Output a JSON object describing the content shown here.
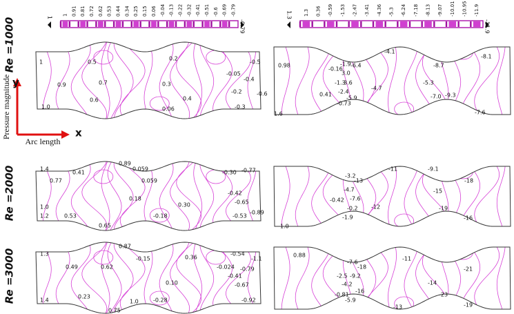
{
  "colorbars": [
    {
      "ticks": [
        "1",
        "0.91",
        "0.81",
        "0.72",
        "0.62",
        "0.53",
        "0.44",
        "0.34",
        "0.25",
        "0.15",
        "0.06",
        "-0.04",
        "-0.13",
        "-0.22",
        "-0.32",
        "-0.41",
        "-0.51",
        "-0.6",
        "-0.69",
        "-0.79"
      ],
      "start": "1",
      "end": "-0.79"
    },
    {
      "ticks": [
        "1.3",
        "0.36",
        "-0.59",
        "-1.53",
        "-2.47",
        "-3.41",
        "-4.36",
        "-5.3",
        "-6.24",
        "-7.18",
        "-8.13",
        "-9.07",
        "-10.01",
        "-10.95",
        "-11.9"
      ],
      "start": "1.3",
      "end": "-11.9"
    }
  ],
  "rows": [
    "Re =1000",
    "Re =2000",
    "Re =3000"
  ],
  "axes": {
    "y": "y",
    "x": "x",
    "y_label": "Pressure magnitude",
    "x_label": "Arc length"
  },
  "panels": [
    {
      "labels": [
        "1",
        "0.5",
        "0.2",
        "0.9",
        "0.7",
        "0.3",
        "-0.05",
        "-0.4",
        "-0.5",
        "0.6",
        "-0.2",
        "-0.6",
        "0.4",
        "0.06",
        "-0.3",
        "1.0"
      ]
    },
    {
      "labels": [
        "0.98",
        "-4.1",
        "-8.1",
        "-0.16",
        "-1.9",
        "-6.4",
        "3.0",
        "-8.7",
        "-1.3",
        "3.6",
        "-4.7",
        "-5.3",
        "0.41",
        "-2.4",
        "-5.9",
        "-7.0",
        "-9.3",
        "-0.73",
        "1.6",
        "-7.6"
      ]
    },
    {
      "labels": [
        "1.4",
        "0.41",
        "0.89",
        "0.059",
        "0.77",
        "0.059",
        "-0.30",
        "-0.77",
        "0.18",
        "0.30",
        "-0.42",
        "-0.65",
        "1.0",
        "1.2",
        "0.53",
        "-0.18",
        "-0.53",
        "-0.89",
        "0.65"
      ]
    },
    {
      "labels": [
        "-3.2",
        "-13",
        "-11",
        "-9.1",
        "-4.7",
        "-18",
        "-15",
        "-0.42",
        "-7.6",
        "-12",
        "-19",
        "-0.2",
        "-1.9",
        "-16",
        "1.0"
      ]
    },
    {
      "labels": [
        "1.3",
        "0.87",
        "-0.54",
        "-1.1",
        "0.49",
        "0.62",
        "-0.15",
        "0.36",
        "-0.024",
        "-0.79",
        "-0.41",
        "0.10",
        "-0.67",
        "0.23",
        "-0.28",
        "-0.92",
        "1.4",
        "1.0",
        "0.75"
      ]
    },
    {
      "labels": [
        "0.88",
        "-7.6",
        "-18",
        "-11",
        "-21",
        "-2.5",
        "-9.2",
        "-4.2",
        "-14",
        "-0.81",
        "-16",
        "-23",
        "-5.9",
        "-13",
        "-19"
      ]
    }
  ]
}
